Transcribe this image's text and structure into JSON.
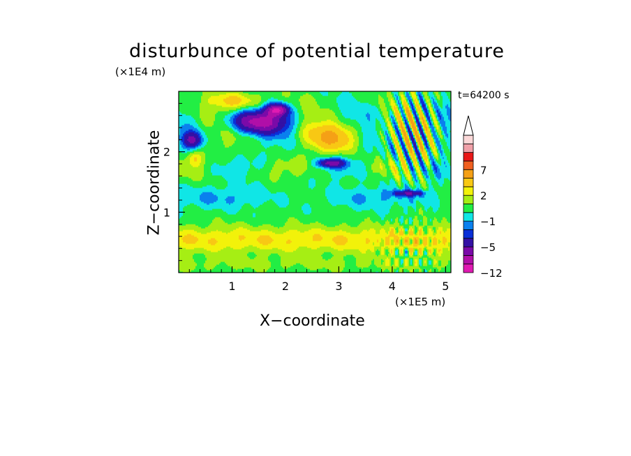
{
  "chart_data": {
    "type": "heatmap",
    "title": "disturbunce of potential temperature",
    "xlabel": "X−coordinate",
    "ylabel": "Z−coordinate",
    "x_unit": "(×1E5 m)",
    "y_unit": "(×1E4 m)",
    "time_label": "t=64200 s",
    "xlim": [
      0,
      5.1
    ],
    "ylim": [
      0,
      3.0
    ],
    "x_ticks": [
      1,
      2,
      3,
      4,
      5
    ],
    "x_tick_labels": [
      "1",
      "2",
      "3",
      "4",
      "5"
    ],
    "y_ticks": [
      1,
      2
    ],
    "y_tick_labels": [
      "1",
      "2"
    ],
    "colorbar": {
      "levels": [
        -12,
        -9,
        -7,
        -5,
        -3,
        -2,
        -1,
        0,
        1,
        2,
        3,
        5,
        7,
        9,
        12
      ],
      "tick_values": [
        -12,
        -5,
        -1,
        2,
        7
      ],
      "tick_labels": [
        "−12",
        "−5",
        "−1",
        "2",
        "7"
      ],
      "colors": [
        "#e01ab2",
        "#b10fa8",
        "#7a0aa8",
        "#3311a5",
        "#0a2fd8",
        "#0a80ee",
        "#10e6e6",
        "#22ee44",
        "#a6ee14",
        "#f2f20a",
        "#f8c814",
        "#f5a016",
        "#f06020",
        "#e81818",
        "#f0a0a8",
        "#fad8d8"
      ],
      "extend": "max"
    }
  }
}
